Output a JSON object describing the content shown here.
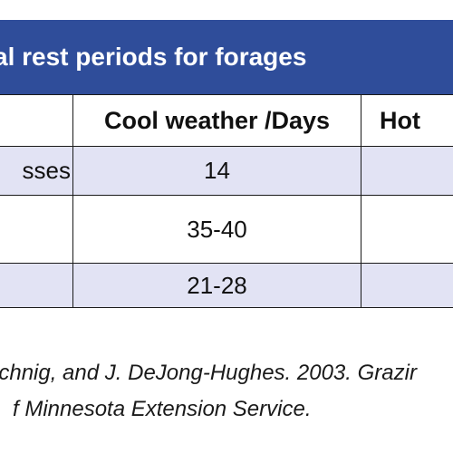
{
  "table": {
    "title": "al rest periods for forages",
    "headers": [
      "",
      "Cool weather /Days",
      "Hot"
    ],
    "rows": [
      [
        "sses",
        "14",
        ""
      ],
      [
        "",
        "35-40",
        ""
      ],
      [
        "",
        "21-28",
        ""
      ]
    ],
    "shade_color": "#e2e3f4",
    "header_color": "#2f4d9a"
  },
  "footnote": {
    "line1": "echnig, and J. DeJong-Hughes. 2003. Grazir",
    "line2": "f Minnesota Extension Service."
  }
}
